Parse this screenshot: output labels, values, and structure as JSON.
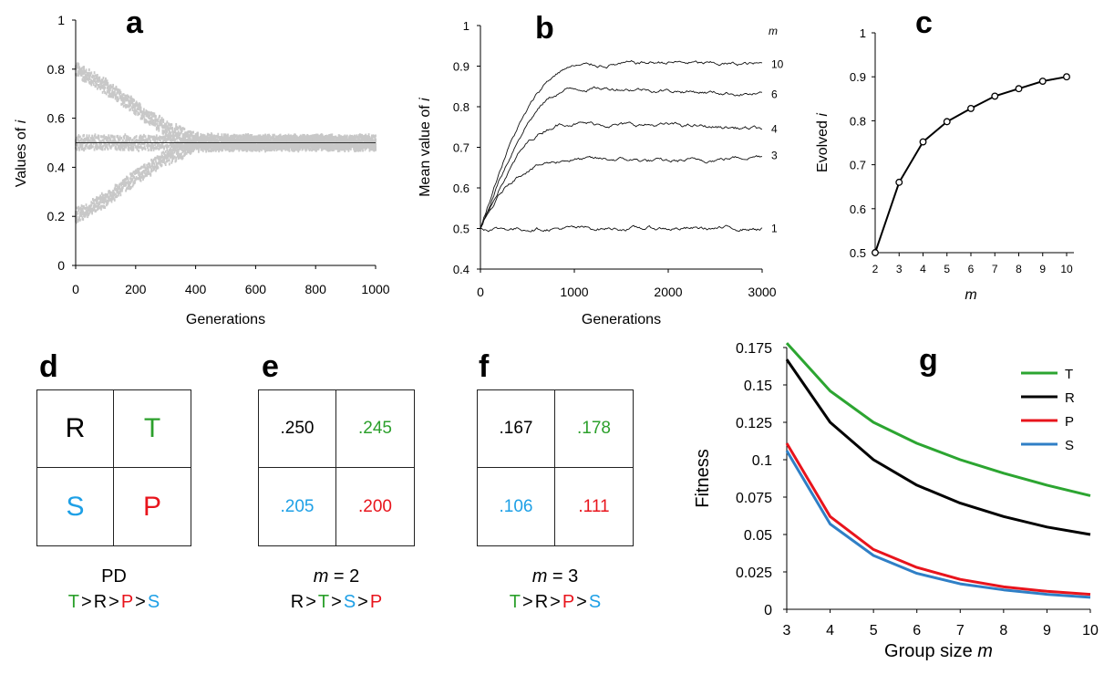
{
  "colors": {
    "black": "#000000",
    "green": "#2ca02c",
    "red": "#e8141c",
    "blue": "#1ea0e6",
    "grey": "#c8c8c8",
    "line_green": "#2ca531",
    "line_blue": "#2f7fc6"
  },
  "panels": {
    "a": {
      "label": "a"
    },
    "b": {
      "label": "b"
    },
    "c": {
      "label": "c"
    },
    "d": {
      "label": "d",
      "cells": [
        {
          "text": "R",
          "color": "black"
        },
        {
          "text": "T",
          "color": "green"
        },
        {
          "text": "S",
          "color": "blue"
        },
        {
          "text": "P",
          "color": "red"
        }
      ],
      "caption": "PD",
      "ordering": [
        {
          "text": "T",
          "color": "green"
        },
        {
          "text": ">"
        },
        {
          "text": "R",
          "color": "black"
        },
        {
          "text": ">"
        },
        {
          "text": "P",
          "color": "red"
        },
        {
          "text": ">"
        },
        {
          "text": "S",
          "color": "blue"
        }
      ]
    },
    "e": {
      "label": "e",
      "cells": [
        {
          "text": ".250",
          "color": "black"
        },
        {
          "text": ".245",
          "color": "green"
        },
        {
          "text": ".205",
          "color": "blue"
        },
        {
          "text": ".200",
          "color": "red"
        }
      ],
      "caption_var": "m",
      "caption_rest": " = 2",
      "ordering": [
        {
          "text": "R",
          "color": "black"
        },
        {
          "text": ">"
        },
        {
          "text": "T",
          "color": "green"
        },
        {
          "text": ">"
        },
        {
          "text": "S",
          "color": "blue"
        },
        {
          "text": ">"
        },
        {
          "text": "P",
          "color": "red"
        }
      ]
    },
    "f": {
      "label": "f",
      "cells": [
        {
          "text": ".167",
          "color": "black"
        },
        {
          "text": ".178",
          "color": "green"
        },
        {
          "text": ".106",
          "color": "blue"
        },
        {
          "text": ".111",
          "color": "red"
        }
      ],
      "caption_var": "m",
      "caption_rest": " = 3",
      "ordering": [
        {
          "text": "T",
          "color": "green"
        },
        {
          "text": ">"
        },
        {
          "text": "R",
          "color": "black"
        },
        {
          "text": ">"
        },
        {
          "text": "P",
          "color": "red"
        },
        {
          "text": ">"
        },
        {
          "text": "S",
          "color": "blue"
        }
      ]
    },
    "g": {
      "label": "g"
    }
  },
  "chart_data": [
    {
      "id": "a",
      "type": "scatter",
      "xlabel": "Generations",
      "ylabel_text": "Values of ",
      "ylabel_var": "i",
      "xlim": [
        0,
        1000
      ],
      "ylim": [
        0,
        1
      ],
      "xticks": [
        0,
        200,
        400,
        600,
        800,
        1000
      ],
      "yticks": [
        0,
        0.2,
        0.4,
        0.6,
        0.8,
        1
      ],
      "ytick_labels": [
        "0",
        "0.2",
        "0.4",
        "0.6",
        "0.8",
        "1"
      ],
      "clouds": [
        {
          "name": "upper",
          "x": [
            0,
            100,
            200,
            300,
            400,
            500,
            1000
          ],
          "y": [
            0.8,
            0.73,
            0.64,
            0.56,
            0.51,
            0.5,
            0.5
          ],
          "halfwidth": 0.035
        },
        {
          "name": "middle",
          "x": [
            0,
            1000
          ],
          "y": [
            0.5,
            0.5
          ],
          "halfwidth": 0.035
        },
        {
          "name": "lower",
          "x": [
            0,
            100,
            200,
            300,
            400,
            500,
            1000
          ],
          "y": [
            0.2,
            0.27,
            0.36,
            0.44,
            0.49,
            0.5,
            0.5
          ],
          "halfwidth": 0.035
        }
      ],
      "mean_line": {
        "x": [
          0,
          1000
        ],
        "y": [
          0.5,
          0.5
        ]
      }
    },
    {
      "id": "b",
      "type": "line",
      "xlabel": "Generations",
      "ylabel_text": "Mean value of ",
      "ylabel_var": "i",
      "xlim": [
        0,
        3000
      ],
      "ylim": [
        0.4,
        1
      ],
      "xticks": [
        0,
        1000,
        2000,
        3000
      ],
      "yticks": [
        0.4,
        0.5,
        0.6,
        0.7,
        0.8,
        0.9,
        1
      ],
      "ytick_labels": [
        "0.4",
        "0.5",
        "0.6",
        "0.7",
        "0.8",
        "0.9",
        "1"
      ],
      "legend_title": "m",
      "series": [
        {
          "name": "10",
          "x": [
            0,
            100,
            200,
            300,
            400,
            500,
            600,
            700,
            800,
            900,
            1000,
            1500,
            2000,
            2500,
            3000
          ],
          "y": [
            0.5,
            0.57,
            0.64,
            0.7,
            0.75,
            0.79,
            0.83,
            0.86,
            0.88,
            0.895,
            0.9,
            0.905,
            0.91,
            0.905,
            0.905
          ]
        },
        {
          "name": "6",
          "x": [
            0,
            100,
            200,
            300,
            400,
            500,
            600,
            700,
            800,
            900,
            1000,
            1500,
            2000,
            2500,
            3000
          ],
          "y": [
            0.5,
            0.56,
            0.62,
            0.67,
            0.72,
            0.76,
            0.79,
            0.815,
            0.83,
            0.84,
            0.845,
            0.845,
            0.84,
            0.835,
            0.83
          ]
        },
        {
          "name": "4",
          "x": [
            0,
            100,
            200,
            300,
            400,
            500,
            600,
            700,
            800,
            900,
            1000,
            1500,
            2000,
            2500,
            3000
          ],
          "y": [
            0.5,
            0.55,
            0.6,
            0.64,
            0.68,
            0.71,
            0.73,
            0.745,
            0.755,
            0.76,
            0.76,
            0.755,
            0.755,
            0.75,
            0.745
          ]
        },
        {
          "name": "3",
          "x": [
            0,
            100,
            200,
            300,
            400,
            500,
            600,
            700,
            800,
            900,
            1000,
            1500,
            2000,
            2500,
            3000
          ],
          "y": [
            0.5,
            0.54,
            0.58,
            0.61,
            0.63,
            0.645,
            0.655,
            0.66,
            0.665,
            0.67,
            0.67,
            0.67,
            0.665,
            0.67,
            0.68
          ]
        },
        {
          "name": "1",
          "x": [
            0,
            500,
            1000,
            1500,
            2000,
            2500,
            3000
          ],
          "y": [
            0.5,
            0.5,
            0.5,
            0.5,
            0.5,
            0.5,
            0.5
          ]
        }
      ]
    },
    {
      "id": "c",
      "type": "line",
      "xlabel_var": "m",
      "ylabel_text": "Evolved ",
      "ylabel_var": "i",
      "xlim": [
        2,
        10
      ],
      "ylim": [
        0.5,
        1
      ],
      "xticks": [
        2,
        3,
        4,
        5,
        6,
        7,
        8,
        9,
        10
      ],
      "yticks": [
        0.5,
        0.6,
        0.7,
        0.8,
        0.9,
        1
      ],
      "ytick_labels": [
        "0.5",
        "0.6",
        "0.7",
        "0.8",
        "0.9",
        "1"
      ],
      "series": [
        {
          "x": [
            2,
            3,
            4,
            5,
            6,
            7,
            8,
            9,
            10
          ],
          "y": [
            0.5,
            0.66,
            0.752,
            0.798,
            0.828,
            0.856,
            0.873,
            0.89,
            0.9
          ]
        }
      ]
    },
    {
      "id": "g",
      "type": "line",
      "xlabel_text": "Group size ",
      "xlabel_var": "m",
      "ylabel": "Fitness",
      "xlim": [
        3,
        10
      ],
      "ylim": [
        0,
        0.175
      ],
      "xticks": [
        3,
        4,
        5,
        6,
        7,
        8,
        9,
        10
      ],
      "yticks": [
        0,
        0.025,
        0.05,
        0.075,
        0.1,
        0.125,
        0.15,
        0.175
      ],
      "ytick_labels": [
        "0",
        "0.025",
        "0.05",
        "0.075",
        "0.1",
        "0.125",
        "0.15",
        "0.175"
      ],
      "legend_position": "top-right",
      "series": [
        {
          "name": "T",
          "color": "line_green",
          "x": [
            3,
            4,
            5,
            6,
            7,
            8,
            9,
            10
          ],
          "y": [
            0.178,
            0.146,
            0.125,
            0.111,
            0.1,
            0.091,
            0.083,
            0.076
          ]
        },
        {
          "name": "R",
          "color": "black",
          "x": [
            3,
            4,
            5,
            6,
            7,
            8,
            9,
            10
          ],
          "y": [
            0.167,
            0.125,
            0.1,
            0.083,
            0.071,
            0.062,
            0.055,
            0.05
          ]
        },
        {
          "name": "P",
          "color": "red",
          "x": [
            3,
            4,
            5,
            6,
            7,
            8,
            9,
            10
          ],
          "y": [
            0.111,
            0.062,
            0.04,
            0.028,
            0.02,
            0.015,
            0.012,
            0.01
          ]
        },
        {
          "name": "S",
          "color": "line_blue",
          "x": [
            3,
            4,
            5,
            6,
            7,
            8,
            9,
            10
          ],
          "y": [
            0.106,
            0.057,
            0.036,
            0.024,
            0.017,
            0.013,
            0.01,
            0.008
          ]
        }
      ]
    }
  ]
}
